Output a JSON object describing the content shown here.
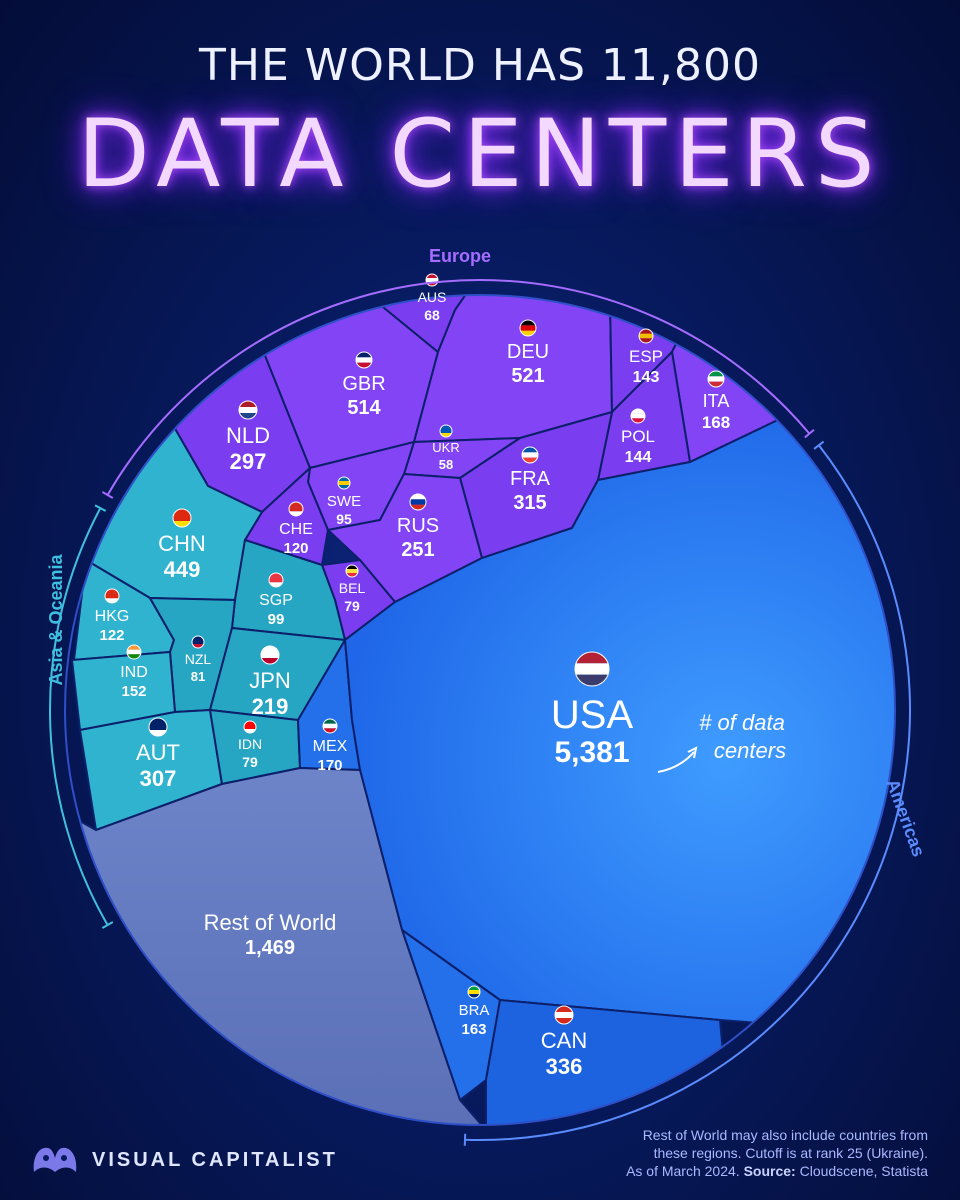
{
  "title": {
    "line1": "THE WORLD HAS 11,800",
    "line2": "DATA CENTERS"
  },
  "chart_data": {
    "type": "voronoi-treemap",
    "total": 11800,
    "unit": "# of data centers",
    "regions": [
      {
        "name": "Europe",
        "color": "#7a3df2",
        "countries": [
          {
            "code": "DEU",
            "value": 521
          },
          {
            "code": "GBR",
            "value": 514
          },
          {
            "code": "FRA",
            "value": 315
          },
          {
            "code": "NLD",
            "value": 297
          },
          {
            "code": "RUS",
            "value": 251
          },
          {
            "code": "ITA",
            "value": 168
          },
          {
            "code": "POL",
            "value": 144
          },
          {
            "code": "ESP",
            "value": 143
          },
          {
            "code": "CHE",
            "value": 120
          },
          {
            "code": "SWE",
            "value": 95
          },
          {
            "code": "BEL",
            "value": 79
          },
          {
            "code": "AUS",
            "value": 68
          },
          {
            "code": "UKR",
            "value": 58
          }
        ]
      },
      {
        "name": "Asia & Oceania",
        "color": "#28a8c8",
        "countries": [
          {
            "code": "CHN",
            "value": 449
          },
          {
            "code": "AUT",
            "value": 307
          },
          {
            "code": "JPN",
            "value": 219
          },
          {
            "code": "IND",
            "value": 152
          },
          {
            "code": "HKG",
            "value": 122
          },
          {
            "code": "SGP",
            "value": 99
          },
          {
            "code": "NZL",
            "value": 81
          },
          {
            "code": "IDN",
            "value": 79
          }
        ]
      },
      {
        "name": "Americas",
        "color": "#1e6ff0",
        "countries": [
          {
            "code": "USA",
            "value": 5381
          },
          {
            "code": "CAN",
            "value": 336
          },
          {
            "code": "MEX",
            "value": 170
          },
          {
            "code": "BRA",
            "value": 163
          }
        ]
      },
      {
        "name": "",
        "color": "#6a7fbf",
        "countries": [
          {
            "code": "Rest of World",
            "value": 1469
          }
        ]
      }
    ],
    "annotation": "# of data centers"
  },
  "footer": {
    "brand": "VISUAL CAPITALIST",
    "note_line1": "Rest of World may also include countries from",
    "note_line2": "these regions. Cutoff is at rank 25 (Ukraine).",
    "note_line3_prefix": "As of March 2024.",
    "note_source_label": "Source:",
    "note_source": "Cloudscene, Statista"
  },
  "colors": {
    "background": "#071a5e",
    "europe": "#7a3df2",
    "asia": "#28a8c8",
    "americas": "#1e6ff0",
    "usa": "#2f86f5",
    "rest": "#6a7fbf",
    "title_glow": "#b14cff"
  }
}
